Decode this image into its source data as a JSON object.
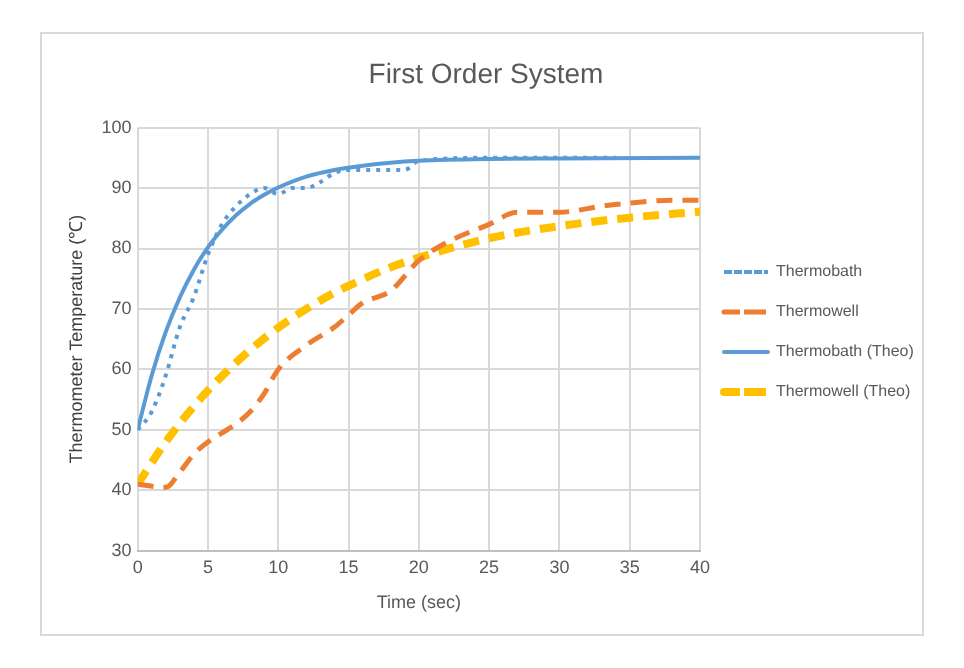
{
  "chart_data": {
    "type": "line",
    "title": "First Order System",
    "xlabel": "Time (sec)",
    "ylabel": "Thermometer Temperature (℃)",
    "xlim": [
      0,
      40
    ],
    "xticks": [
      0,
      5,
      10,
      15,
      20,
      25,
      30,
      35,
      40
    ],
    "ylim": [
      30,
      100
    ],
    "yticks": [
      30,
      40,
      50,
      60,
      70,
      80,
      90,
      100
    ],
    "grid": true,
    "legend": "right",
    "marker": "none",
    "series": [
      {
        "name": "Thermobath",
        "color": "#5b9bd5",
        "line_style": "dotted",
        "x": [
          0,
          1,
          2,
          3,
          4,
          5,
          6,
          7,
          8,
          9,
          10,
          11,
          12,
          13,
          14,
          15,
          17,
          19,
          20,
          25,
          30,
          34
        ],
        "values": [
          50,
          53,
          59,
          67,
          72,
          79,
          84,
          87,
          89,
          90,
          89,
          90,
          90,
          91,
          92.5,
          93,
          93,
          93,
          94.5,
          95,
          95,
          95
        ]
      },
      {
        "name": "Thermowell",
        "color": "#ed7d31",
        "line_style": "dashed",
        "x": [
          0,
          2,
          3,
          4,
          5,
          6,
          7,
          8,
          9,
          10,
          12,
          14,
          15,
          16,
          18,
          20,
          22,
          25,
          27,
          30,
          33,
          35,
          38,
          40
        ],
        "values": [
          41,
          40.5,
          43,
          46,
          48,
          49.5,
          51,
          53,
          56,
          60,
          64,
          67,
          69,
          71,
          73,
          78,
          81,
          84,
          86,
          86,
          87,
          87.5,
          88,
          88
        ]
      },
      {
        "name": "Thermobath (Theo)",
        "color": "#5b9bd5",
        "line_style": "solid",
        "x": [
          0,
          1,
          2,
          3,
          4,
          5,
          6,
          7,
          8,
          9,
          10,
          12,
          14,
          16,
          18,
          20,
          25,
          30,
          40
        ],
        "values": [
          50,
          59,
          66.2,
          71.9,
          76.5,
          80.2,
          83.1,
          85.5,
          87.4,
          88.9,
          90.1,
          91.9,
          93,
          93.7,
          94.2,
          94.5,
          94.8,
          94.9,
          95
        ]
      },
      {
        "name": "Thermowell (Theo)",
        "color": "#ffc000",
        "line_style": "dashed",
        "x": [
          0,
          2,
          4,
          6,
          8,
          10,
          12,
          14,
          16,
          18,
          20,
          25,
          30,
          35,
          40
        ],
        "values": [
          41,
          48,
          53.9,
          58.9,
          63.2,
          66.9,
          70,
          72.7,
          74.9,
          76.9,
          78.5,
          81.7,
          83.7,
          85.1,
          86.1
        ]
      }
    ]
  }
}
